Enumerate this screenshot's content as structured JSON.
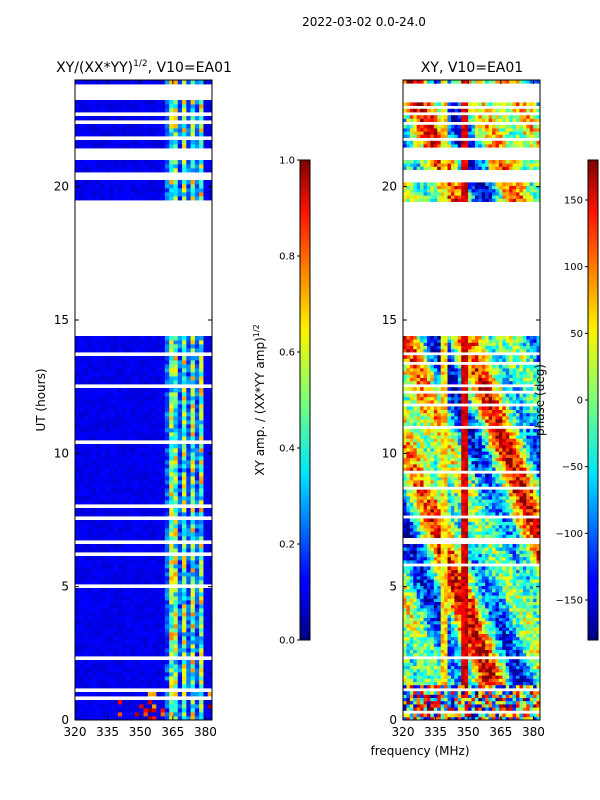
{
  "chart_data": {
    "type": "heatmap",
    "suptitle": "2022-03-02 0.0-24.0",
    "xlabel": "frequency (MHz)",
    "ylabel": "UT (hours)",
    "panels": [
      {
        "id": "amp",
        "title_pre": "XY/(XX*YY)",
        "title_sup": "1/2",
        "title_post": ", V10=EA01",
        "xlim": [
          320,
          383
        ],
        "ylim": [
          0,
          24
        ],
        "xticks": [
          320,
          335,
          350,
          365,
          380
        ],
        "yticks": [
          0,
          5,
          10,
          15,
          20
        ],
        "colormap": "jet",
        "colorbar": {
          "label_pre": "XY amp. / (XX*YY amp)",
          "label_sup": "1/2",
          "range": [
            0.0,
            1.0
          ],
          "ticks": [
            "0.0",
            "0.2",
            "0.4",
            "0.6",
            "0.8",
            "1.0"
          ]
        }
      },
      {
        "id": "phase",
        "title_pre": "XY, V10=EA01",
        "title_sup": "",
        "title_post": "",
        "xlim": [
          320,
          383
        ],
        "ylim": [
          0,
          24
        ],
        "xticks": [
          320,
          335,
          350,
          365,
          380
        ],
        "yticks": [
          0,
          5,
          10,
          15,
          20
        ],
        "colormap": "jet",
        "colorbar": {
          "label_pre": "phase (deg)",
          "label_sup": "",
          "range": [
            -180,
            180
          ],
          "ticks": [
            "-150",
            "-100",
            "-50",
            "0",
            "50",
            "100",
            "150"
          ]
        }
      }
    ],
    "gaps_hours": [
      [
        0.27,
        0.32
      ],
      [
        0.56,
        0.6
      ],
      [
        0.8,
        0.85
      ],
      [
        1.1,
        1.2
      ],
      [
        2.3,
        2.4
      ],
      [
        5.0,
        5.05
      ],
      [
        5.35,
        5.4
      ],
      [
        5.8,
        5.85
      ],
      [
        6.2,
        6.25
      ],
      [
        6.6,
        6.8
      ],
      [
        7.55,
        7.65
      ],
      [
        8.0,
        8.05
      ],
      [
        8.7,
        8.75
      ],
      [
        9.3,
        9.35
      ],
      [
        9.7,
        9.75
      ],
      [
        10.4,
        10.5
      ],
      [
        10.9,
        11.0
      ],
      [
        11.4,
        11.45
      ],
      [
        11.8,
        11.9
      ],
      [
        12.25,
        12.35
      ],
      [
        12.5,
        12.6
      ],
      [
        13.3,
        13.4
      ],
      [
        13.7,
        13.8
      ],
      [
        14.45,
        19.5
      ],
      [
        20.2,
        20.6
      ],
      [
        21.0,
        21.5
      ],
      [
        21.75,
        21.9
      ],
      [
        22.3,
        22.5
      ],
      [
        22.7,
        22.75
      ],
      [
        22.9,
        23.0
      ],
      [
        23.2,
        23.85
      ]
    ],
    "bright_channel_columns_MHz": [
      [
        362.5,
        364.5
      ],
      [
        366.0,
        367.5
      ],
      [
        369.5,
        371.0
      ],
      [
        373.5,
        374.5
      ],
      [
        377.0,
        378.5
      ]
    ]
  }
}
